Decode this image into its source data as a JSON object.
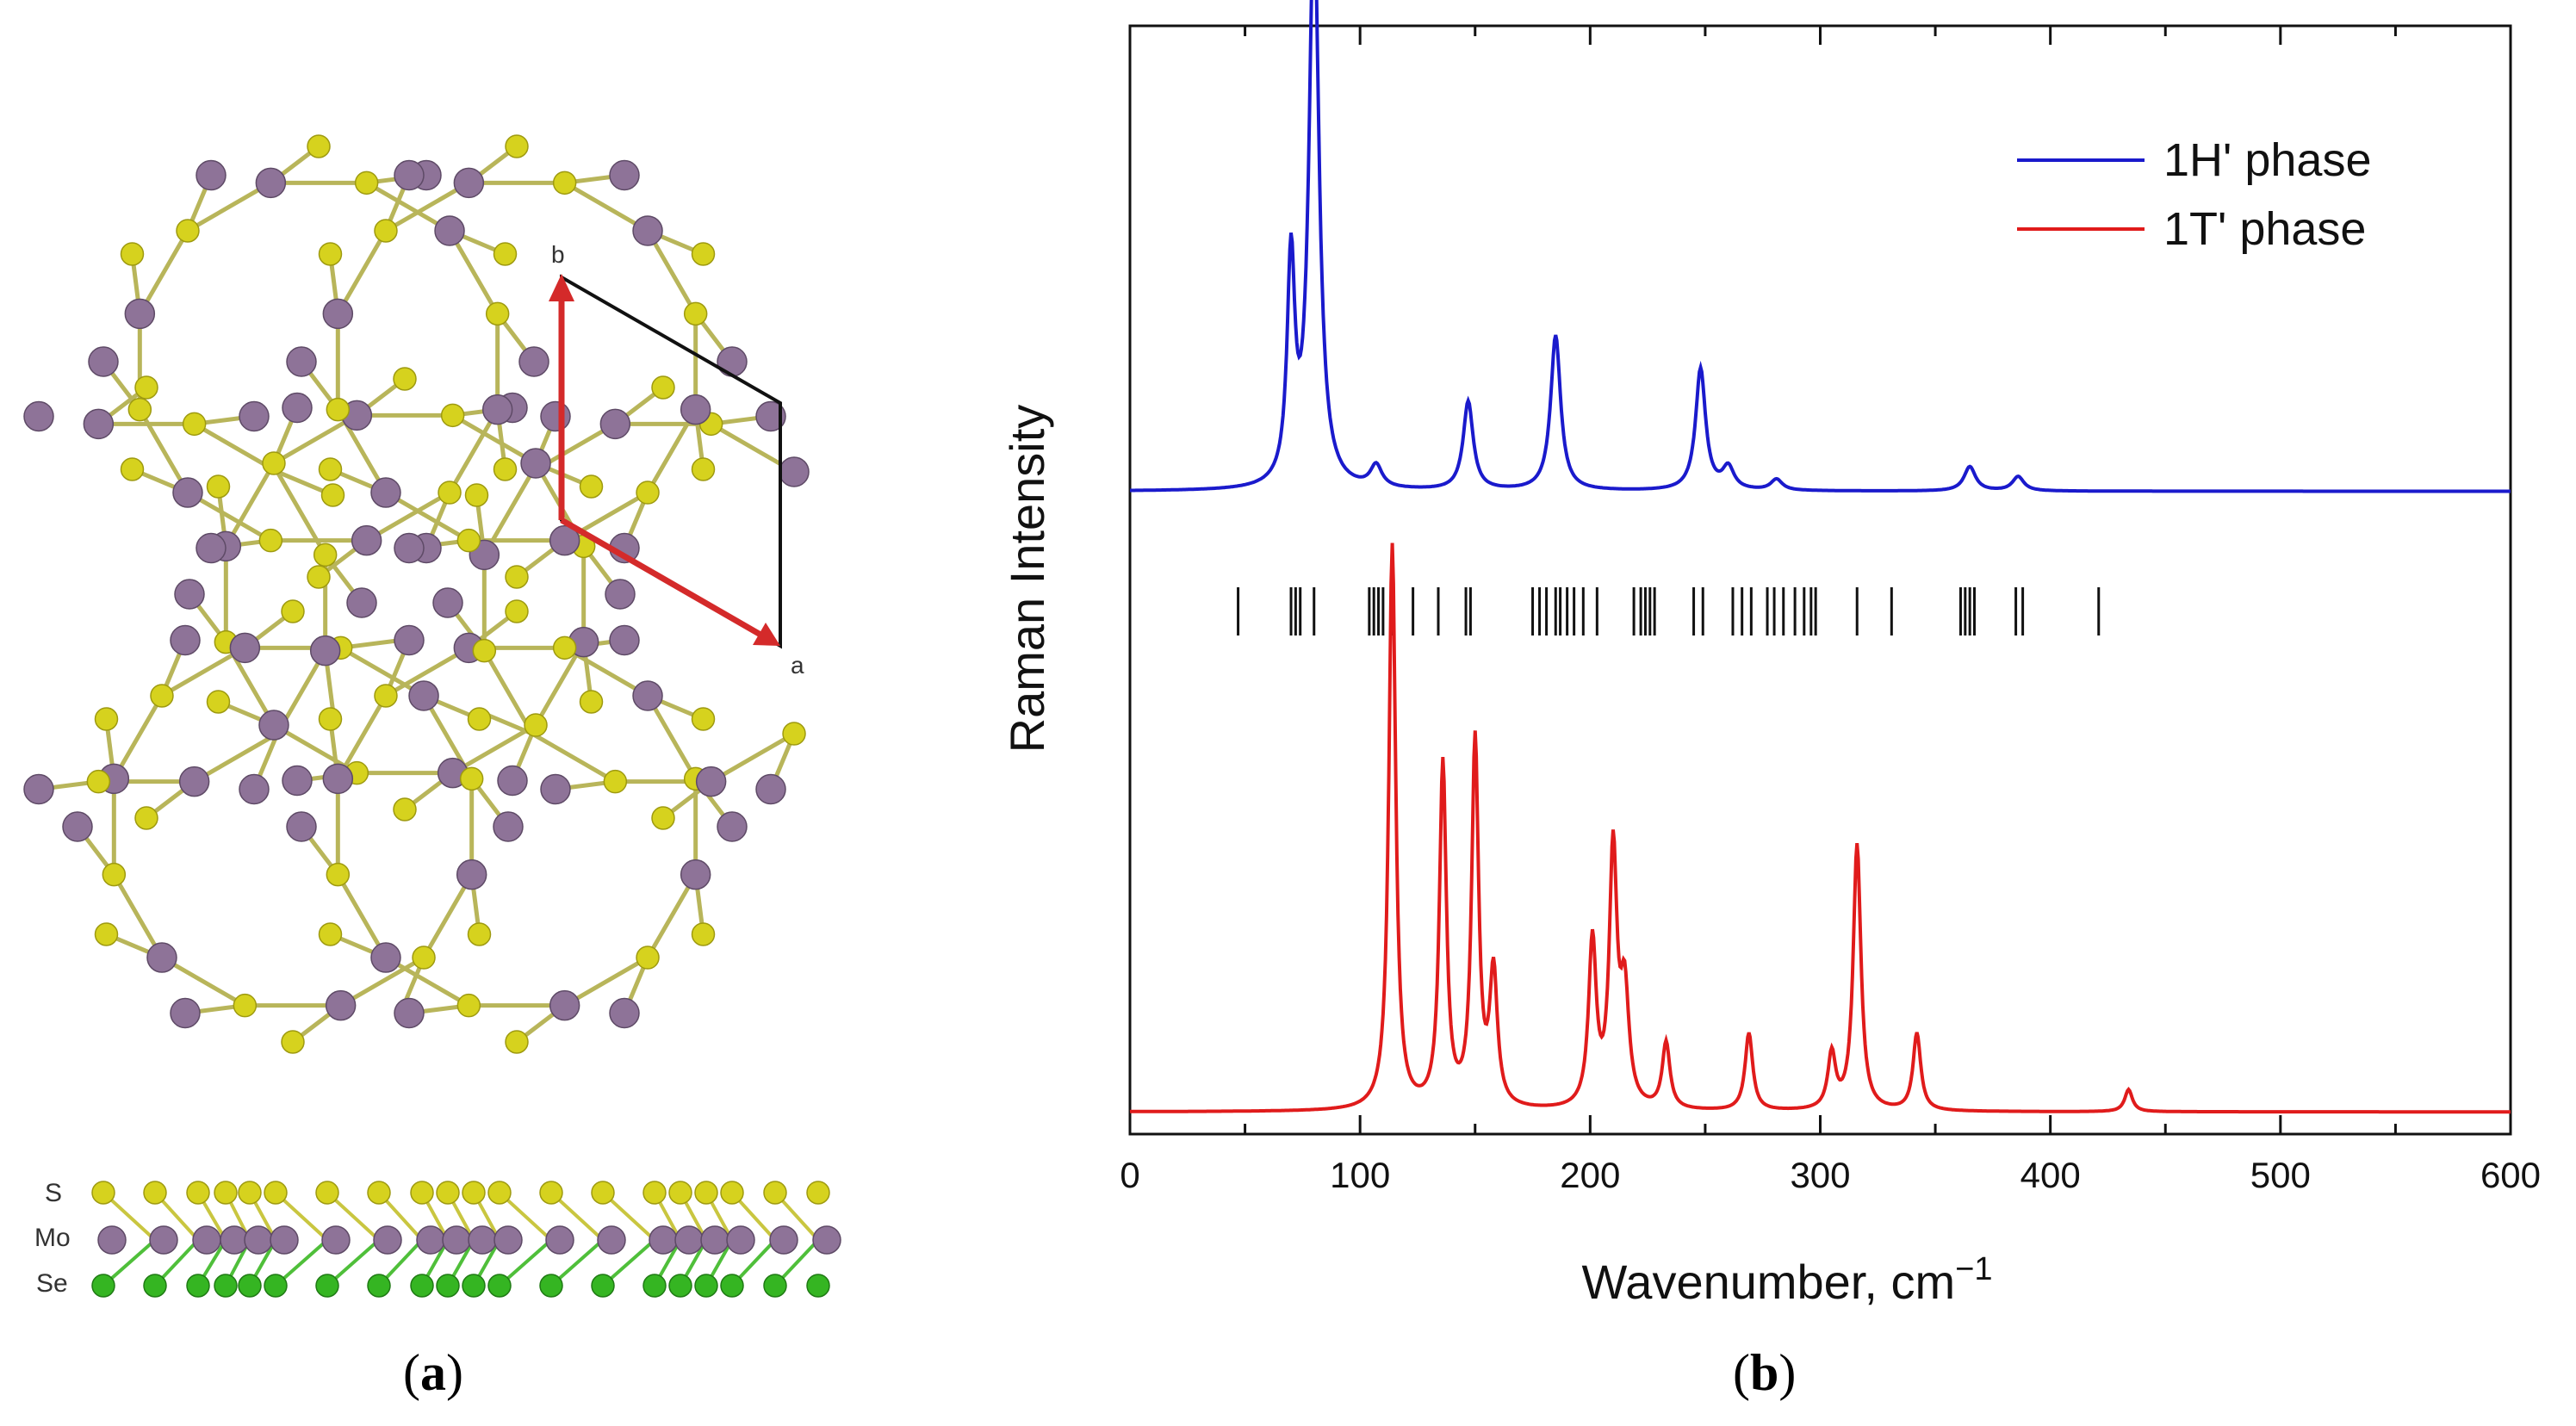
{
  "panel_a": {
    "label_open": "(",
    "label_letter": "a",
    "label_close": ")",
    "lattice_vectors": [
      "b",
      "a"
    ],
    "atom_labels": [
      "S",
      "Mo",
      "Se"
    ],
    "colors": {
      "S": "#d6d21e",
      "Mo": "#8e7398",
      "Se": "#35b522",
      "vector": "#d42a2a",
      "cell": "#111111"
    }
  },
  "panel_b": {
    "label_open": "(",
    "label_letter": "b",
    "label_close": ")"
  },
  "chart_data": {
    "type": "line",
    "xlabel": "Wavenumber, cm",
    "xlabel_superscript": "−1",
    "ylabel": "Raman Intensity",
    "xlim": [
      0,
      600
    ],
    "xticks": [
      0,
      100,
      200,
      300,
      400,
      500,
      600
    ],
    "y_ticks_labeled": false,
    "legend_position": "top-right",
    "series": [
      {
        "name": "1H' phase",
        "color": "#1a1acc",
        "baseline": 0.58,
        "peaks": [
          [
            70,
            0.2,
            2.0
          ],
          [
            80,
            0.52,
            2.6
          ],
          [
            107,
            0.02,
            3.0
          ],
          [
            147,
            0.08,
            2.6
          ],
          [
            185,
            0.14,
            2.6
          ],
          [
            248,
            0.11,
            2.6
          ],
          [
            260,
            0.02,
            3.0
          ],
          [
            281,
            0.01,
            3.0
          ],
          [
            365,
            0.022,
            3.0
          ],
          [
            386,
            0.013,
            3.0
          ]
        ]
      },
      {
        "name": "1T' phase",
        "color": "#e01b1b",
        "baseline": 0.02,
        "peaks": [
          [
            114,
            0.51,
            1.8
          ],
          [
            136,
            0.31,
            1.8
          ],
          [
            150,
            0.33,
            1.8
          ],
          [
            158,
            0.12,
            2.0
          ],
          [
            201,
            0.15,
            2.0
          ],
          [
            210,
            0.23,
            2.0
          ],
          [
            215,
            0.1,
            2.2
          ],
          [
            233,
            0.06,
            2.0
          ],
          [
            269,
            0.07,
            2.0
          ],
          [
            305,
            0.05,
            2.0
          ],
          [
            316,
            0.24,
            2.0
          ],
          [
            342,
            0.07,
            2.0
          ],
          [
            434,
            0.02,
            2.0
          ]
        ]
      }
    ],
    "mode_markers": [
      47,
      70,
      72,
      74,
      80,
      104,
      106,
      108,
      110,
      114,
      123,
      134,
      146,
      148,
      175,
      178,
      181,
      185,
      187,
      190,
      193,
      197,
      203,
      219,
      222,
      224,
      226,
      228,
      245,
      249,
      262,
      266,
      270,
      277,
      280,
      284,
      289,
      293,
      296,
      298,
      316,
      331,
      361,
      363,
      365,
      367,
      385,
      388,
      421
    ]
  }
}
